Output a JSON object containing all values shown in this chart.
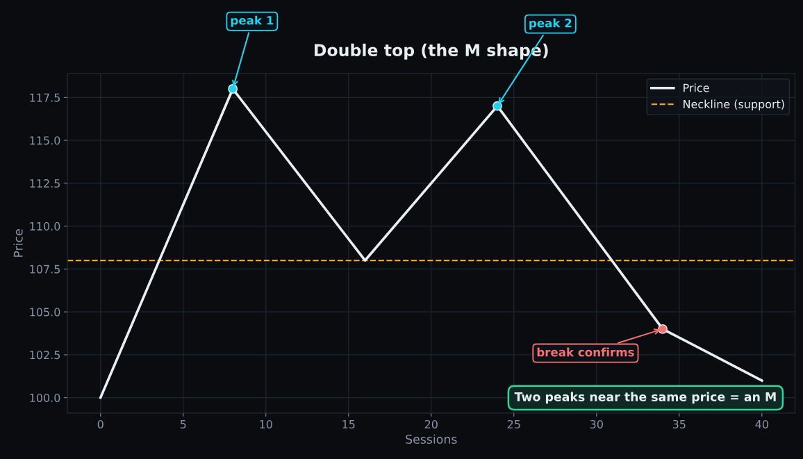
{
  "chart_data": {
    "type": "line",
    "title": "Double top (the M shape)",
    "xlabel": "Sessions",
    "ylabel": "Price",
    "series": [
      {
        "name": "Price",
        "color": "#e8eef2",
        "x": [
          0,
          8,
          16,
          24,
          34,
          40
        ],
        "values": [
          100,
          118,
          108,
          117,
          104,
          101
        ],
        "marker": "none",
        "line_style": "solid"
      },
      {
        "type": "scatter",
        "x": [
          8,
          24,
          34
        ],
        "values": [
          118,
          117,
          104
        ],
        "colors": [
          "#22d3ee",
          "#22d3ee",
          "#f87171"
        ],
        "marker": "circle"
      }
    ],
    "ref_lines": [
      {
        "axis": "y",
        "value": 108,
        "label": "Neckline (support)",
        "color": "#e8a33d",
        "line_style": "dashed"
      }
    ],
    "annotations": [
      {
        "text": "peak 1",
        "x": 8,
        "y": 118
      },
      {
        "text": "peak 2",
        "x": 24,
        "y": 117
      },
      {
        "text": "break confirms",
        "x": 34,
        "y": 104
      },
      "Two peaks near the same price = an M"
    ],
    "xlim": [
      -2,
      42
    ],
    "ylim": [
      99.1,
      118.9
    ],
    "xticks": [
      0,
      5,
      10,
      15,
      20,
      25,
      30,
      35,
      40
    ],
    "yticks": [
      {
        "value": 100,
        "label": "100.0"
      },
      {
        "value": 102.5,
        "label": "102.5"
      },
      {
        "value": 105,
        "label": "105.0"
      },
      {
        "value": 107.5,
        "label": "107.5"
      },
      {
        "value": 110,
        "label": "110.0"
      },
      {
        "value": 112.5,
        "label": "112.5"
      },
      {
        "value": 115,
        "label": "115.0"
      },
      {
        "value": 117.5,
        "label": "117.5"
      }
    ],
    "grid": true,
    "legend": "top right"
  }
}
